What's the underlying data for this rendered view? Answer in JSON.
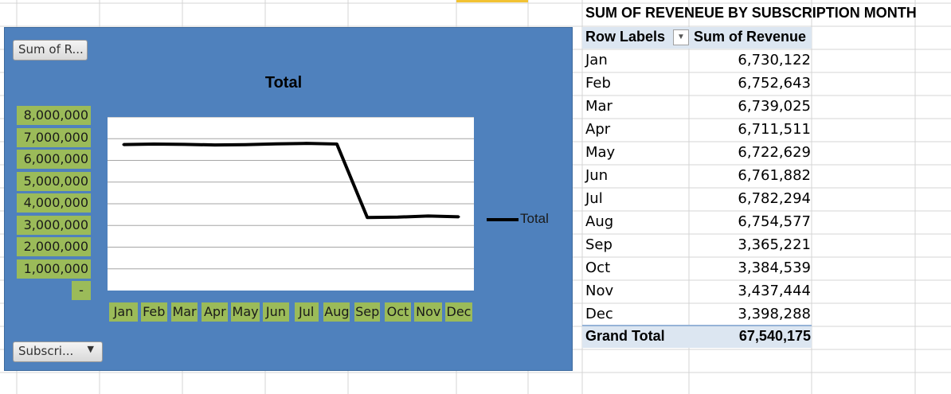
{
  "chart": {
    "value_field_button": "Sum of R...",
    "row_field_button": "Subscri...",
    "title": "Total",
    "legend": "Total",
    "zero_tick": "-"
  },
  "chart_data": {
    "type": "line",
    "title": "Total",
    "categories": [
      "Jan",
      "Feb",
      "Mar",
      "Apr",
      "May",
      "Jun",
      "Jul",
      "Aug",
      "Sep",
      "Oct",
      "Nov",
      "Dec"
    ],
    "series": [
      {
        "name": "Total",
        "values": [
          6730122,
          6752643,
          6739025,
          6711511,
          6722629,
          6761882,
          6782294,
          6754577,
          3365221,
          3384539,
          3437444,
          3398288
        ]
      }
    ],
    "yticks": [
      "8,000,000",
      "7,000,000",
      "6,000,000",
      "5,000,000",
      "4,000,000",
      "3,000,000",
      "2,000,000",
      "1,000,000"
    ],
    "ylim": [
      0,
      8000000
    ],
    "grid": true,
    "legend_position": "right",
    "colors": {
      "line": "#000000",
      "panel": "#4f81bd",
      "tick_bg": "#9bbb59"
    }
  },
  "pivot": {
    "title": "SUM OF REVENEUE BY SUBSCRIPTION MONTH",
    "col_row_labels": "Row Labels",
    "col_sum": "Sum of Revenue",
    "rows": [
      {
        "label": "Jan",
        "value": "6,730,122"
      },
      {
        "label": "Feb",
        "value": "6,752,643"
      },
      {
        "label": "Mar",
        "value": "6,739,025"
      },
      {
        "label": "Apr",
        "value": "6,711,511"
      },
      {
        "label": "May",
        "value": "6,722,629"
      },
      {
        "label": "Jun",
        "value": "6,761,882"
      },
      {
        "label": "Jul",
        "value": "6,782,294"
      },
      {
        "label": "Aug",
        "value": "6,754,577"
      },
      {
        "label": "Sep",
        "value": "3,365,221"
      },
      {
        "label": "Oct",
        "value": "3,384,539"
      },
      {
        "label": "Nov",
        "value": "3,437,444"
      },
      {
        "label": "Dec",
        "value": "3,398,288"
      }
    ],
    "grand_total_label": "Grand Total",
    "grand_total_value": "67,540,175"
  }
}
